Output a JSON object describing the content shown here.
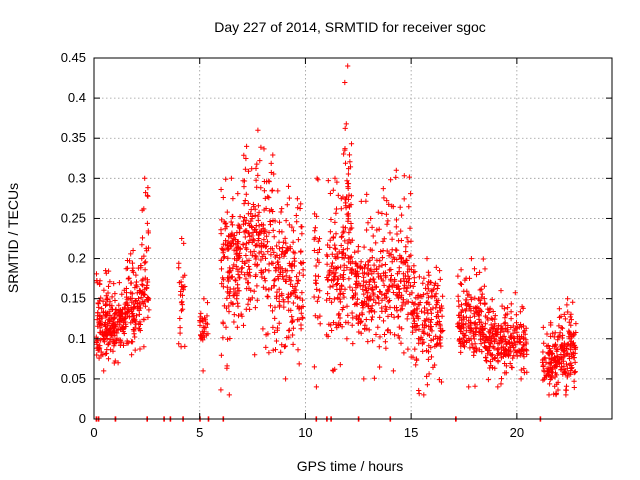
{
  "chart_data": {
    "type": "scatter",
    "title": "Day 227 of 2014, SRMTID for receiver sgoc",
    "xlabel": "GPS time / hours",
    "ylabel": "SRMTID / TECUs",
    "xlim": [
      0,
      24.5
    ],
    "ylim": [
      0,
      0.45
    ],
    "xticks": [
      0,
      5,
      10,
      15,
      20
    ],
    "yticks": [
      0,
      0.05,
      0.1,
      0.15,
      0.2,
      0.25,
      0.3,
      0.35,
      0.4,
      0.45
    ],
    "ytick_labels": [
      "0",
      "0.05",
      "0.1",
      "0.15",
      "0.2",
      "0.25",
      "0.3",
      "0.35",
      "0.4",
      "0.45"
    ],
    "grid": true,
    "marker": "+",
    "series_color": "#ff0000",
    "clusters": [
      {
        "x0": 0.1,
        "x1": 1.0,
        "ymin": 0.06,
        "ymax": 0.185,
        "center": 0.11,
        "n": 160
      },
      {
        "x0": 0.9,
        "x1": 1.5,
        "ymin": 0.07,
        "ymax": 0.17,
        "center": 0.12,
        "n": 70
      },
      {
        "x0": 1.5,
        "x1": 2.2,
        "ymin": 0.08,
        "ymax": 0.21,
        "center": 0.14,
        "n": 100
      },
      {
        "x0": 2.2,
        "x1": 2.6,
        "ymin": 0.09,
        "ymax": 0.3,
        "center": 0.17,
        "n": 55
      },
      {
        "x0": 4.0,
        "x1": 4.3,
        "ymin": 0.09,
        "ymax": 0.225,
        "center": 0.16,
        "n": 25
      },
      {
        "x0": 5.0,
        "x1": 5.4,
        "ymin": 0.06,
        "ymax": 0.15,
        "center": 0.12,
        "n": 30
      },
      {
        "x0": 6.0,
        "x1": 7.0,
        "ymin": 0.03,
        "ymax": 0.3,
        "center": 0.2,
        "n": 150
      },
      {
        "x0": 7.0,
        "x1": 8.5,
        "ymin": 0.08,
        "ymax": 0.36,
        "center": 0.21,
        "n": 200
      },
      {
        "x0": 8.5,
        "x1": 9.9,
        "ymin": 0.05,
        "ymax": 0.29,
        "center": 0.17,
        "n": 170
      },
      {
        "x0": 10.4,
        "x1": 10.7,
        "ymin": 0.04,
        "ymax": 0.3,
        "center": 0.18,
        "n": 30
      },
      {
        "x0": 11.0,
        "x1": 11.8,
        "ymin": 0.06,
        "ymax": 0.3,
        "center": 0.18,
        "n": 110
      },
      {
        "x0": 11.8,
        "x1": 12.2,
        "ymin": 0.1,
        "ymax": 0.44,
        "center": 0.24,
        "n": 70
      },
      {
        "x0": 12.2,
        "x1": 13.6,
        "ymin": 0.05,
        "ymax": 0.28,
        "center": 0.16,
        "n": 170
      },
      {
        "x0": 13.6,
        "x1": 15.0,
        "ymin": 0.06,
        "ymax": 0.31,
        "center": 0.17,
        "n": 170
      },
      {
        "x0": 15.0,
        "x1": 16.5,
        "ymin": 0.03,
        "ymax": 0.2,
        "center": 0.13,
        "n": 170
      },
      {
        "x0": 17.2,
        "x1": 18.5,
        "ymin": 0.04,
        "ymax": 0.2,
        "center": 0.12,
        "n": 170
      },
      {
        "x0": 18.5,
        "x1": 20.0,
        "ymin": 0.04,
        "ymax": 0.16,
        "center": 0.1,
        "n": 180
      },
      {
        "x0": 20.0,
        "x1": 20.5,
        "ymin": 0.05,
        "ymax": 0.14,
        "center": 0.09,
        "n": 50
      },
      {
        "x0": 21.2,
        "x1": 22.0,
        "ymin": 0.03,
        "ymax": 0.12,
        "center": 0.07,
        "n": 100
      },
      {
        "x0": 22.0,
        "x1": 22.8,
        "ymin": 0.03,
        "ymax": 0.15,
        "center": 0.08,
        "n": 110
      }
    ],
    "zero_points": [
      0.1,
      0.2,
      1.0,
      2.5,
      3.3,
      3.6,
      4.2,
      5.0,
      5.4,
      6.1,
      10.5,
      11.0,
      11.2,
      12.5,
      14.0,
      17.1,
      21.1
    ]
  }
}
